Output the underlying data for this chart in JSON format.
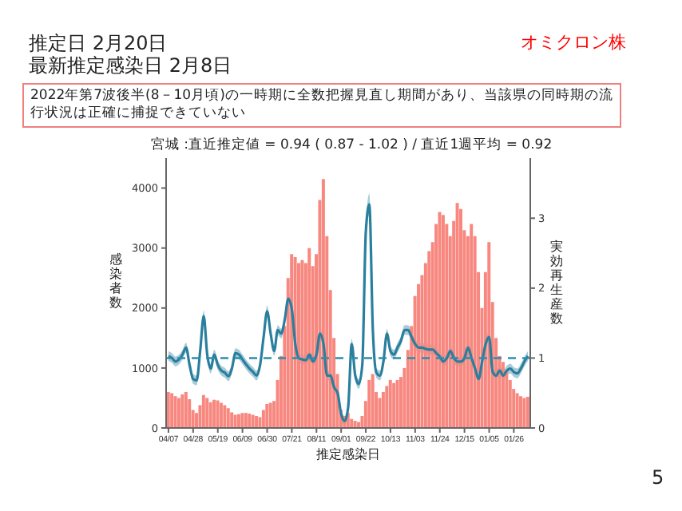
{
  "chart_data": {
    "type": "bar",
    "title": "推定日  2月20日",
    "subtitle": "最新推定感染日  2月8日",
    "annotations": [
      "オミクロン株",
      "2022年第7波後半(8－10月頃)の一時期に全数把握見直し期間があり、当該県の同時期の流行状況は正確に捕捉できていない",
      "宮城 :直近推定値 = 0.94 ( 0.87 - 1.02 ) / 直近1週平均 = 0.92",
      "5"
    ],
    "xlabel": "推定感染日",
    "ylabel": "感染者数",
    "y2label": "実効再生産数",
    "x": [
      "2022-04-07",
      "2022-04-10",
      "2022-04-13",
      "2022-04-16",
      "2022-04-19",
      "2022-04-22",
      "2022-04-25",
      "2022-04-28",
      "2022-05-01",
      "2022-05-04",
      "2022-05-07",
      "2022-05-10",
      "2022-05-13",
      "2022-05-16",
      "2022-05-19",
      "2022-05-22",
      "2022-05-25",
      "2022-05-28",
      "2022-05-31",
      "2022-06-03",
      "2022-06-06",
      "2022-06-09",
      "2022-06-12",
      "2022-06-15",
      "2022-06-18",
      "2022-06-21",
      "2022-06-24",
      "2022-06-27",
      "2022-06-30",
      "2022-07-03",
      "2022-07-06",
      "2022-07-09",
      "2022-07-12",
      "2022-07-15",
      "2022-07-18",
      "2022-07-21",
      "2022-07-24",
      "2022-07-27",
      "2022-07-30",
      "2022-08-02",
      "2022-08-05",
      "2022-08-08",
      "2022-08-11",
      "2022-08-14",
      "2022-08-17",
      "2022-08-20",
      "2022-08-23",
      "2022-08-26",
      "2022-08-29",
      "2022-09-01",
      "2022-09-04",
      "2022-09-07",
      "2022-09-10",
      "2022-09-13",
      "2022-09-16",
      "2022-09-19",
      "2022-09-22",
      "2022-09-25",
      "2022-09-28",
      "2022-10-01",
      "2022-10-04",
      "2022-10-07",
      "2022-10-10",
      "2022-10-13",
      "2022-10-16",
      "2022-10-19",
      "2022-10-22",
      "2022-10-25",
      "2022-10-28",
      "2022-10-31",
      "2022-11-03",
      "2022-11-06",
      "2022-11-09",
      "2022-11-12",
      "2022-11-15",
      "2022-11-18",
      "2022-11-21",
      "2022-11-24",
      "2022-11-27",
      "2022-11-30",
      "2022-12-03",
      "2022-12-06",
      "2022-12-09",
      "2022-12-12",
      "2022-12-15",
      "2022-12-18",
      "2022-12-21",
      "2022-12-24",
      "2022-12-27",
      "2022-12-30",
      "2023-01-02",
      "2023-01-05",
      "2023-01-08",
      "2023-01-11",
      "2023-01-14",
      "2023-01-17",
      "2023-01-20",
      "2023-01-23",
      "2023-01-26",
      "2023-01-29",
      "2023-02-01",
      "2023-02-04",
      "2023-02-07"
    ],
    "series": [
      {
        "color": "#f7877f",
        "values": [
          600,
          580,
          530,
          500,
          560,
          600,
          480,
          300,
          250,
          380,
          550,
          500,
          430,
          470,
          460,
          420,
          380,
          330,
          260,
          220,
          230,
          250,
          250,
          240,
          220,
          200,
          180,
          300,
          400,
          420,
          450,
          800,
          1200,
          1700,
          2500,
          2900,
          2850,
          2750,
          2800,
          2750,
          3000,
          2700,
          2900,
          3800,
          4150,
          3200,
          2300,
          1500,
          900,
          300,
          200,
          250,
          150,
          120,
          100,
          200,
          450,
          800,
          900,
          600,
          500,
          600,
          700,
          800,
          750,
          800,
          850,
          1000,
          1300,
          1700,
          2200,
          2400,
          2550,
          2750,
          2950,
          3100,
          3400,
          3600,
          3550,
          3400,
          3200,
          3450,
          3750,
          3650,
          3300,
          3200,
          3400,
          3200,
          2600,
          2000,
          2600,
          3100,
          2100,
          1500,
          1200,
          1100,
          950,
          800,
          650,
          580,
          530,
          500,
          520
        ]
      },
      {
        "type": "line",
        "axis": "y2",
        "color": "#2a7f9e",
        "values": [
          1.03,
          1.0,
          0.95,
          0.98,
          1.05,
          1.15,
          0.9,
          0.7,
          0.68,
          1.1,
          1.6,
          1.05,
          0.85,
          1.05,
          0.9,
          0.82,
          0.79,
          0.74,
          0.85,
          1.07,
          1.05,
          0.98,
          0.91,
          0.85,
          0.8,
          0.75,
          0.9,
          1.3,
          1.67,
          1.35,
          1.1,
          1.4,
          1.35,
          1.55,
          1.85,
          1.7,
          1.2,
          1.0,
          0.98,
          0.97,
          1.05,
          0.95,
          1.05,
          1.35,
          1.2,
          0.75,
          0.75,
          0.58,
          0.5,
          0.2,
          0.1,
          0.3,
          1.2,
          0.75,
          0.63,
          0.9,
          2.8,
          3.2,
          1.4,
          0.79,
          0.75,
          0.95,
          1.35,
          1.1,
          1.05,
          1.15,
          1.25,
          1.4,
          1.4,
          1.3,
          1.2,
          1.15,
          1.15,
          1.13,
          1.12,
          1.12,
          1.07,
          1.02,
          0.95,
          1.0,
          1.1,
          1.0,
          0.95,
          0.95,
          1.0,
          1.15,
          1.0,
          0.85,
          0.7,
          0.95,
          1.2,
          1.3,
          0.8,
          0.75,
          0.82,
          0.75,
          0.82,
          0.85,
          0.8,
          0.78,
          0.85,
          0.95,
          1.03
        ],
        "lower": [
          0.96,
          0.93,
          0.88,
          0.91,
          0.98,
          1.08,
          0.83,
          0.63,
          0.61,
          1.03,
          1.52,
          0.98,
          0.78,
          0.98,
          0.83,
          0.75,
          0.72,
          0.67,
          0.78,
          1.0,
          0.98,
          0.91,
          0.84,
          0.78,
          0.73,
          0.68,
          0.83,
          1.23,
          1.59,
          1.28,
          1.03,
          1.33,
          1.28,
          1.48,
          1.78,
          1.63,
          1.13,
          0.93,
          0.91,
          0.9,
          0.98,
          0.88,
          0.98,
          1.28,
          1.13,
          0.68,
          0.68,
          0.51,
          0.43,
          0.13,
          0.03,
          0.23,
          1.12,
          0.68,
          0.56,
          0.83,
          2.65,
          3.05,
          1.3,
          0.72,
          0.68,
          0.88,
          1.28,
          1.03,
          0.98,
          1.08,
          1.18,
          1.33,
          1.33,
          1.23,
          1.13,
          1.08,
          1.08,
          1.06,
          1.05,
          1.05,
          1.0,
          0.95,
          0.88,
          0.93,
          1.03,
          0.93,
          0.88,
          0.88,
          0.93,
          1.08,
          0.93,
          0.78,
          0.63,
          0.88,
          1.13,
          1.23,
          0.73,
          0.68,
          0.75,
          0.68,
          0.75,
          0.78,
          0.73,
          0.71,
          0.78,
          0.88,
          0.96
        ],
        "upper": [
          1.1,
          1.07,
          1.02,
          1.05,
          1.12,
          1.22,
          0.97,
          0.77,
          0.75,
          1.17,
          1.68,
          1.12,
          0.92,
          1.12,
          0.97,
          0.89,
          0.86,
          0.81,
          0.92,
          1.14,
          1.12,
          1.05,
          0.98,
          0.92,
          0.87,
          0.82,
          0.97,
          1.37,
          1.75,
          1.42,
          1.17,
          1.47,
          1.42,
          1.62,
          1.92,
          1.77,
          1.27,
          1.07,
          1.05,
          1.04,
          1.12,
          1.02,
          1.12,
          1.42,
          1.27,
          0.82,
          0.82,
          0.65,
          0.57,
          0.27,
          0.17,
          0.37,
          1.28,
          0.82,
          0.7,
          0.97,
          2.95,
          3.35,
          1.5,
          0.86,
          0.82,
          1.02,
          1.42,
          1.17,
          1.12,
          1.22,
          1.32,
          1.47,
          1.47,
          1.37,
          1.27,
          1.22,
          1.22,
          1.2,
          1.19,
          1.19,
          1.14,
          1.09,
          1.02,
          1.07,
          1.17,
          1.07,
          1.02,
          1.02,
          1.07,
          1.22,
          1.07,
          0.92,
          0.77,
          1.02,
          1.27,
          1.37,
          0.87,
          0.82,
          0.89,
          0.82,
          0.89,
          0.92,
          0.87,
          0.85,
          0.92,
          1.02,
          1.1
        ]
      }
    ],
    "xlim": [
      "2022-04-05",
      "2023-02-09"
    ],
    "xticks": [
      {
        "value": "2022-04-07",
        "label": "04/07"
      },
      {
        "value": "2022-04-28",
        "label": "04/28"
      },
      {
        "value": "2022-05-19",
        "label": "05/19"
      },
      {
        "value": "2022-06-09",
        "label": "06/09"
      },
      {
        "value": "2022-06-30",
        "label": "06/30"
      },
      {
        "value": "2022-07-21",
        "label": "07/21"
      },
      {
        "value": "2022-08-11",
        "label": "08/11"
      },
      {
        "value": "2022-09-01",
        "label": "09/01"
      },
      {
        "value": "2022-09-22",
        "label": "09/22"
      },
      {
        "value": "2022-10-13",
        "label": "10/13"
      },
      {
        "value": "2022-11-03",
        "label": "11/03"
      },
      {
        "value": "2022-11-24",
        "label": "11/24"
      },
      {
        "value": "2022-12-15",
        "label": "12/15"
      },
      {
        "value": "2023-01-05",
        "label": "01/05"
      },
      {
        "value": "2023-01-26",
        "label": "01/26"
      }
    ],
    "ylim": [
      0,
      4500
    ],
    "yticks": [
      0,
      1000,
      2000,
      3000,
      4000
    ],
    "y2lim": [
      0,
      3.86
    ],
    "y2ticks": [
      0,
      1,
      2,
      3
    ],
    "ref_lines": [
      {
        "axis": "y2",
        "value": 1,
        "color": "#2a8fb0",
        "line_style": "dashed"
      }
    ],
    "grid": false
  }
}
